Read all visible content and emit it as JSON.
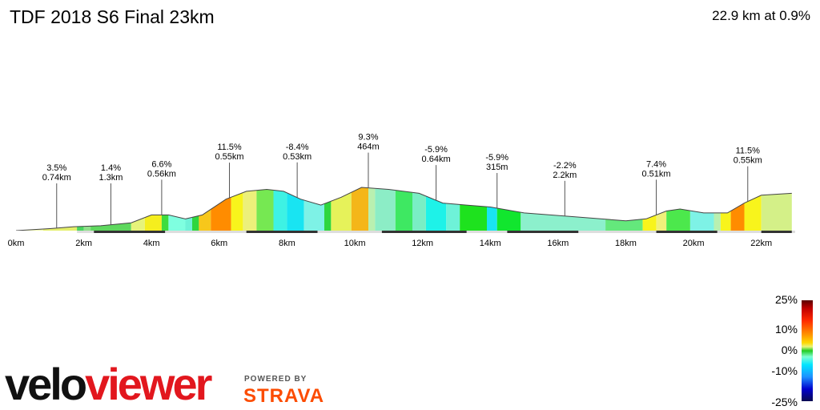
{
  "header": {
    "title": "TDF 2018 S6 Final 23km",
    "summary": "22.9 km at 0.9%"
  },
  "chart_data": {
    "type": "area",
    "title": "TDF 2018 S6 Final 23km",
    "xlabel": "",
    "ylabel": "",
    "xlim": [
      0,
      23
    ],
    "x_ticks": [
      "0km",
      "2km",
      "4km",
      "6km",
      "8km",
      "10km",
      "12km",
      "14km",
      "16km",
      "18km",
      "20km",
      "22km"
    ],
    "grid": false,
    "profile": {
      "x": [
        0,
        1,
        1.7,
        2.5,
        3.4,
        4.0,
        4.5,
        5.0,
        5.5,
        6.2,
        6.8,
        7.4,
        7.9,
        8.4,
        9.0,
        9.6,
        10.2,
        11.0,
        11.9,
        12.6,
        13.3,
        14.0,
        15.0,
        16.5,
        18.0,
        18.6,
        19.2,
        19.6,
        20.3,
        21.0,
        21.5,
        22.0,
        22.9
      ],
      "y": [
        0,
        1,
        2,
        2.5,
        4,
        8,
        8,
        6,
        8,
        16,
        20,
        21,
        20,
        16,
        13,
        17,
        22,
        21,
        19,
        14,
        13,
        12,
        9,
        7,
        5,
        6,
        10,
        11,
        9,
        9,
        14,
        18,
        19
      ]
    },
    "segments": [
      {
        "x1": 0.0,
        "x2": 0.8,
        "color": "#f0f7b0"
      },
      {
        "x1": 0.8,
        "x2": 1.8,
        "color": "#e4ef6a"
      },
      {
        "x1": 1.8,
        "x2": 2.0,
        "color": "#48d65e"
      },
      {
        "x1": 2.0,
        "x2": 2.2,
        "color": "#8fe08a"
      },
      {
        "x1": 2.2,
        "x2": 3.4,
        "color": "#5ed85e"
      },
      {
        "x1": 3.4,
        "x2": 3.8,
        "color": "#e6f37a"
      },
      {
        "x1": 3.8,
        "x2": 4.3,
        "color": "#f5ee1e"
      },
      {
        "x1": 4.3,
        "x2": 4.5,
        "color": "#3edc3e"
      },
      {
        "x1": 4.5,
        "x2": 5.0,
        "color": "#7fffe0"
      },
      {
        "x1": 5.0,
        "x2": 5.2,
        "color": "#6ef2d8"
      },
      {
        "x1": 5.2,
        "x2": 5.4,
        "color": "#2ed63e"
      },
      {
        "x1": 5.4,
        "x2": 5.75,
        "color": "#f7c71b"
      },
      {
        "x1": 5.75,
        "x2": 6.35,
        "color": "#ff8c00"
      },
      {
        "x1": 6.35,
        "x2": 6.7,
        "color": "#f8f41c"
      },
      {
        "x1": 6.7,
        "x2": 7.1,
        "color": "#ecf07a"
      },
      {
        "x1": 7.1,
        "x2": 7.6,
        "color": "#76e852"
      },
      {
        "x1": 7.6,
        "x2": 8.0,
        "color": "#3ef2e4"
      },
      {
        "x1": 8.0,
        "x2": 8.5,
        "color": "#19e4f2"
      },
      {
        "x1": 8.5,
        "x2": 9.1,
        "color": "#7ef2e6"
      },
      {
        "x1": 9.1,
        "x2": 9.3,
        "color": "#2ed63e"
      },
      {
        "x1": 9.3,
        "x2": 9.9,
        "color": "#e6f25a"
      },
      {
        "x1": 9.9,
        "x2": 10.4,
        "color": "#f4b619"
      },
      {
        "x1": 10.4,
        "x2": 10.6,
        "color": "#b9f0b0"
      },
      {
        "x1": 10.6,
        "x2": 11.2,
        "color": "#8cedc6"
      },
      {
        "x1": 11.2,
        "x2": 11.7,
        "color": "#3ee862"
      },
      {
        "x1": 11.7,
        "x2": 12.1,
        "color": "#7aeec4"
      },
      {
        "x1": 12.1,
        "x2": 12.7,
        "color": "#1ef2e8"
      },
      {
        "x1": 12.7,
        "x2": 13.1,
        "color": "#6ef2d8"
      },
      {
        "x1": 13.1,
        "x2": 13.9,
        "color": "#1ee21e"
      },
      {
        "x1": 13.9,
        "x2": 14.2,
        "color": "#19e4f2"
      },
      {
        "x1": 14.2,
        "x2": 14.9,
        "color": "#11e62e"
      },
      {
        "x1": 14.9,
        "x2": 17.4,
        "color": "#8cf0cc"
      },
      {
        "x1": 17.4,
        "x2": 18.5,
        "color": "#64e87c"
      },
      {
        "x1": 18.5,
        "x2": 18.9,
        "color": "#f8f41c"
      },
      {
        "x1": 18.9,
        "x2": 19.2,
        "color": "#f0f07a"
      },
      {
        "x1": 19.2,
        "x2": 19.9,
        "color": "#4ce84c"
      },
      {
        "x1": 19.9,
        "x2": 20.6,
        "color": "#7ef2e6"
      },
      {
        "x1": 20.6,
        "x2": 20.8,
        "color": "#b9f0b0"
      },
      {
        "x1": 20.8,
        "x2": 21.1,
        "color": "#f8f41c"
      },
      {
        "x1": 21.1,
        "x2": 21.5,
        "color": "#ff8c00"
      },
      {
        "x1": 21.5,
        "x2": 22.0,
        "color": "#f8f41c"
      },
      {
        "x1": 22.0,
        "x2": 22.9,
        "color": "#d4f088"
      }
    ],
    "road_segments": [
      {
        "x1": 0.0,
        "x2": 1.8,
        "color": "#ffffff"
      },
      {
        "x1": 2.3,
        "x2": 4.4,
        "color": "#333333"
      },
      {
        "x1": 6.8,
        "x2": 8.9,
        "color": "#333333"
      },
      {
        "x1": 10.8,
        "x2": 13.3,
        "color": "#333333"
      },
      {
        "x1": 14.5,
        "x2": 16.6,
        "color": "#333333"
      },
      {
        "x1": 18.9,
        "x2": 20.7,
        "color": "#333333"
      },
      {
        "x1": 22.0,
        "x2": 22.9,
        "color": "#333333"
      }
    ],
    "annotations": [
      {
        "x": 1.2,
        "line1": "3.5%",
        "line2": "0.74km"
      },
      {
        "x": 2.8,
        "line1": "1.4%",
        "line2": "1.3km"
      },
      {
        "x": 4.3,
        "line1": "6.6%",
        "line2": "0.56km"
      },
      {
        "x": 6.3,
        "line1": "11.5%",
        "line2": "0.55km"
      },
      {
        "x": 8.3,
        "line1": "-8.4%",
        "line2": "0.53km"
      },
      {
        "x": 10.4,
        "line1": "9.3%",
        "line2": "464m"
      },
      {
        "x": 12.4,
        "line1": "-5.9%",
        "line2": "0.64km"
      },
      {
        "x": 14.2,
        "line1": "-5.9%",
        "line2": "315m"
      },
      {
        "x": 16.2,
        "line1": "-2.2%",
        "line2": "2.2km"
      },
      {
        "x": 18.9,
        "line1": "7.4%",
        "line2": "0.51km"
      },
      {
        "x": 21.6,
        "line1": "11.5%",
        "line2": "0.55km"
      }
    ]
  },
  "legend_scale": {
    "labels": [
      "25%",
      "10%",
      "0%",
      "-10%",
      "-25%"
    ]
  },
  "branding": {
    "logo_part1": "velo",
    "logo_part2": "viewer",
    "powered_by": "POWERED BY",
    "strava": "STRAVA"
  }
}
